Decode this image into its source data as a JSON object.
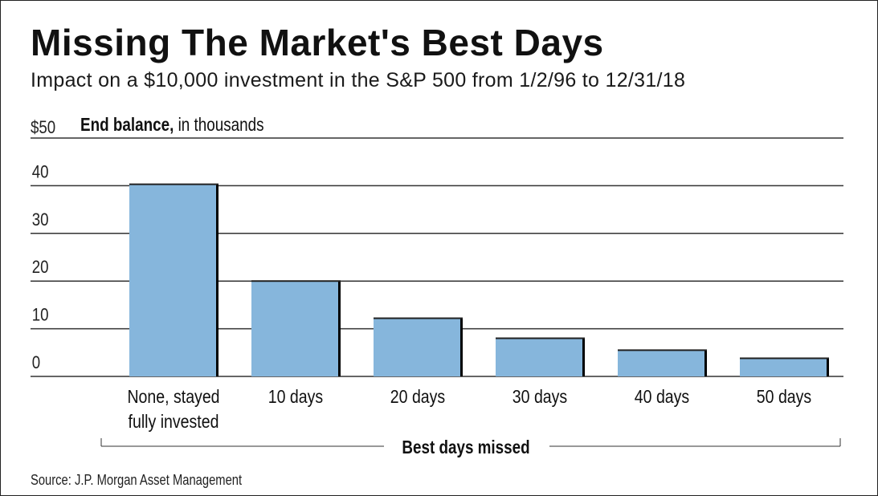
{
  "chart_data": {
    "type": "bar",
    "title": "Missing The Market's Best Days",
    "subtitle": "Impact on a $10,000 investment in the S&P 500 from 1/2/96 to 12/31/18",
    "ylabel_prefix": "$50",
    "ylabel_bold": "End balance,",
    "ylabel_rest": " in thousands",
    "xlabel": "Best days missed",
    "categories": [
      [
        "None, stayed",
        "fully invested"
      ],
      [
        "10 days"
      ],
      [
        "20 days"
      ],
      [
        "30 days"
      ],
      [
        "40 days"
      ],
      [
        "50 days"
      ]
    ],
    "values": [
      40.3,
      20.0,
      12.2,
      8.0,
      5.5,
      3.8
    ],
    "ylim": [
      0,
      50
    ],
    "yticks": [
      "0",
      "10",
      "20",
      "30",
      "40"
    ],
    "ytick_values": [
      0,
      10,
      20,
      30,
      40
    ],
    "grid": true,
    "bar_color": "#86b6dc",
    "bar_shadow_color": "#000000",
    "gridline_color": "#333333"
  },
  "source": "Source: J.P. Morgan Asset Management"
}
